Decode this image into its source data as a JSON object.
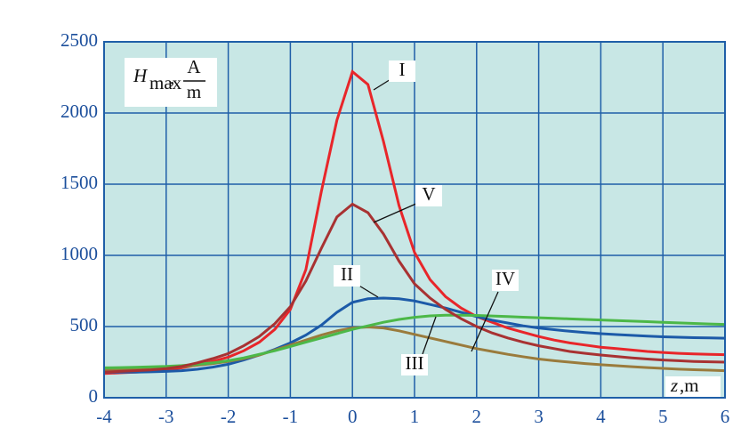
{
  "chart_data": {
    "type": "line",
    "ylabel": {
      "symbol": "H",
      "subscript": "max",
      "separator": ",",
      "unit_numerator": "A",
      "unit_denominator": "m"
    },
    "xlabel": {
      "symbol": "z",
      "unit": ",m"
    },
    "x": [
      -4,
      -3.75,
      -3.5,
      -3.25,
      -3,
      -2.75,
      -2.5,
      -2.25,
      -2,
      -1.75,
      -1.5,
      -1.25,
      -1,
      -0.75,
      -0.5,
      -0.25,
      0,
      0.25,
      0.5,
      0.75,
      1,
      1.25,
      1.5,
      1.75,
      2,
      2.25,
      2.5,
      2.75,
      3,
      3.25,
      3.5,
      3.75,
      4,
      4.25,
      4.5,
      4.75,
      5,
      5.25,
      5.5,
      5.75,
      6
    ],
    "series": [
      {
        "name": "I",
        "color": "#e8262a",
        "values": [
          170,
          175,
          180,
          185,
          195,
          210,
          230,
          255,
          285,
          330,
          390,
          480,
          620,
          900,
          1450,
          1950,
          2290,
          2200,
          1800,
          1350,
          1020,
          830,
          710,
          630,
          570,
          530,
          490,
          460,
          430,
          405,
          385,
          370,
          355,
          345,
          335,
          325,
          318,
          312,
          308,
          305,
          302
        ]
      },
      {
        "name": "II",
        "color": "#1c5aa8",
        "values": [
          180,
          180,
          180,
          182,
          185,
          190,
          200,
          215,
          235,
          265,
          300,
          340,
          385,
          440,
          510,
          600,
          670,
          695,
          700,
          695,
          680,
          655,
          630,
          600,
          570,
          545,
          525,
          505,
          490,
          478,
          467,
          458,
          450,
          444,
          438,
          433,
          428,
          425,
          422,
          420,
          418
        ]
      },
      {
        "name": "III",
        "color": "#9a7b3c",
        "values": [
          195,
          197,
          200,
          205,
          210,
          218,
          228,
          240,
          255,
          275,
          300,
          335,
          370,
          405,
          440,
          470,
          490,
          497,
          490,
          470,
          445,
          420,
          395,
          370,
          345,
          325,
          305,
          288,
          272,
          260,
          250,
          240,
          232,
          225,
          218,
          212,
          206,
          201,
          197,
          194,
          190
        ]
      },
      {
        "name": "IV",
        "color": "#4cb848",
        "values": [
          210,
          212,
          214,
          217,
          220,
          226,
          235,
          245,
          260,
          280,
          305,
          330,
          360,
          390,
          420,
          450,
          480,
          505,
          530,
          550,
          565,
          575,
          580,
          580,
          578,
          574,
          570,
          566,
          562,
          558,
          554,
          550,
          546,
          542,
          538,
          534,
          530,
          526,
          522,
          518,
          515
        ]
      },
      {
        "name": "V",
        "color": "#a83232",
        "values": [
          180,
          185,
          190,
          195,
          205,
          220,
          245,
          275,
          310,
          365,
          430,
          520,
          640,
          820,
          1050,
          1270,
          1360,
          1300,
          1150,
          960,
          800,
          700,
          620,
          555,
          500,
          455,
          420,
          390,
          365,
          345,
          325,
          312,
          300,
          290,
          280,
          272,
          265,
          260,
          255,
          252,
          250
        ]
      }
    ],
    "xlim": [
      -4,
      6
    ],
    "xticks": [
      -4,
      -3,
      -2,
      -1,
      0,
      1,
      2,
      3,
      4,
      5,
      6
    ],
    "ylim": [
      0,
      2500
    ],
    "yticks": [
      0,
      500,
      1000,
      1500,
      2000,
      2500
    ],
    "grid": true,
    "background": "#c8e7e5",
    "grid_color": "#1f5fa8"
  }
}
